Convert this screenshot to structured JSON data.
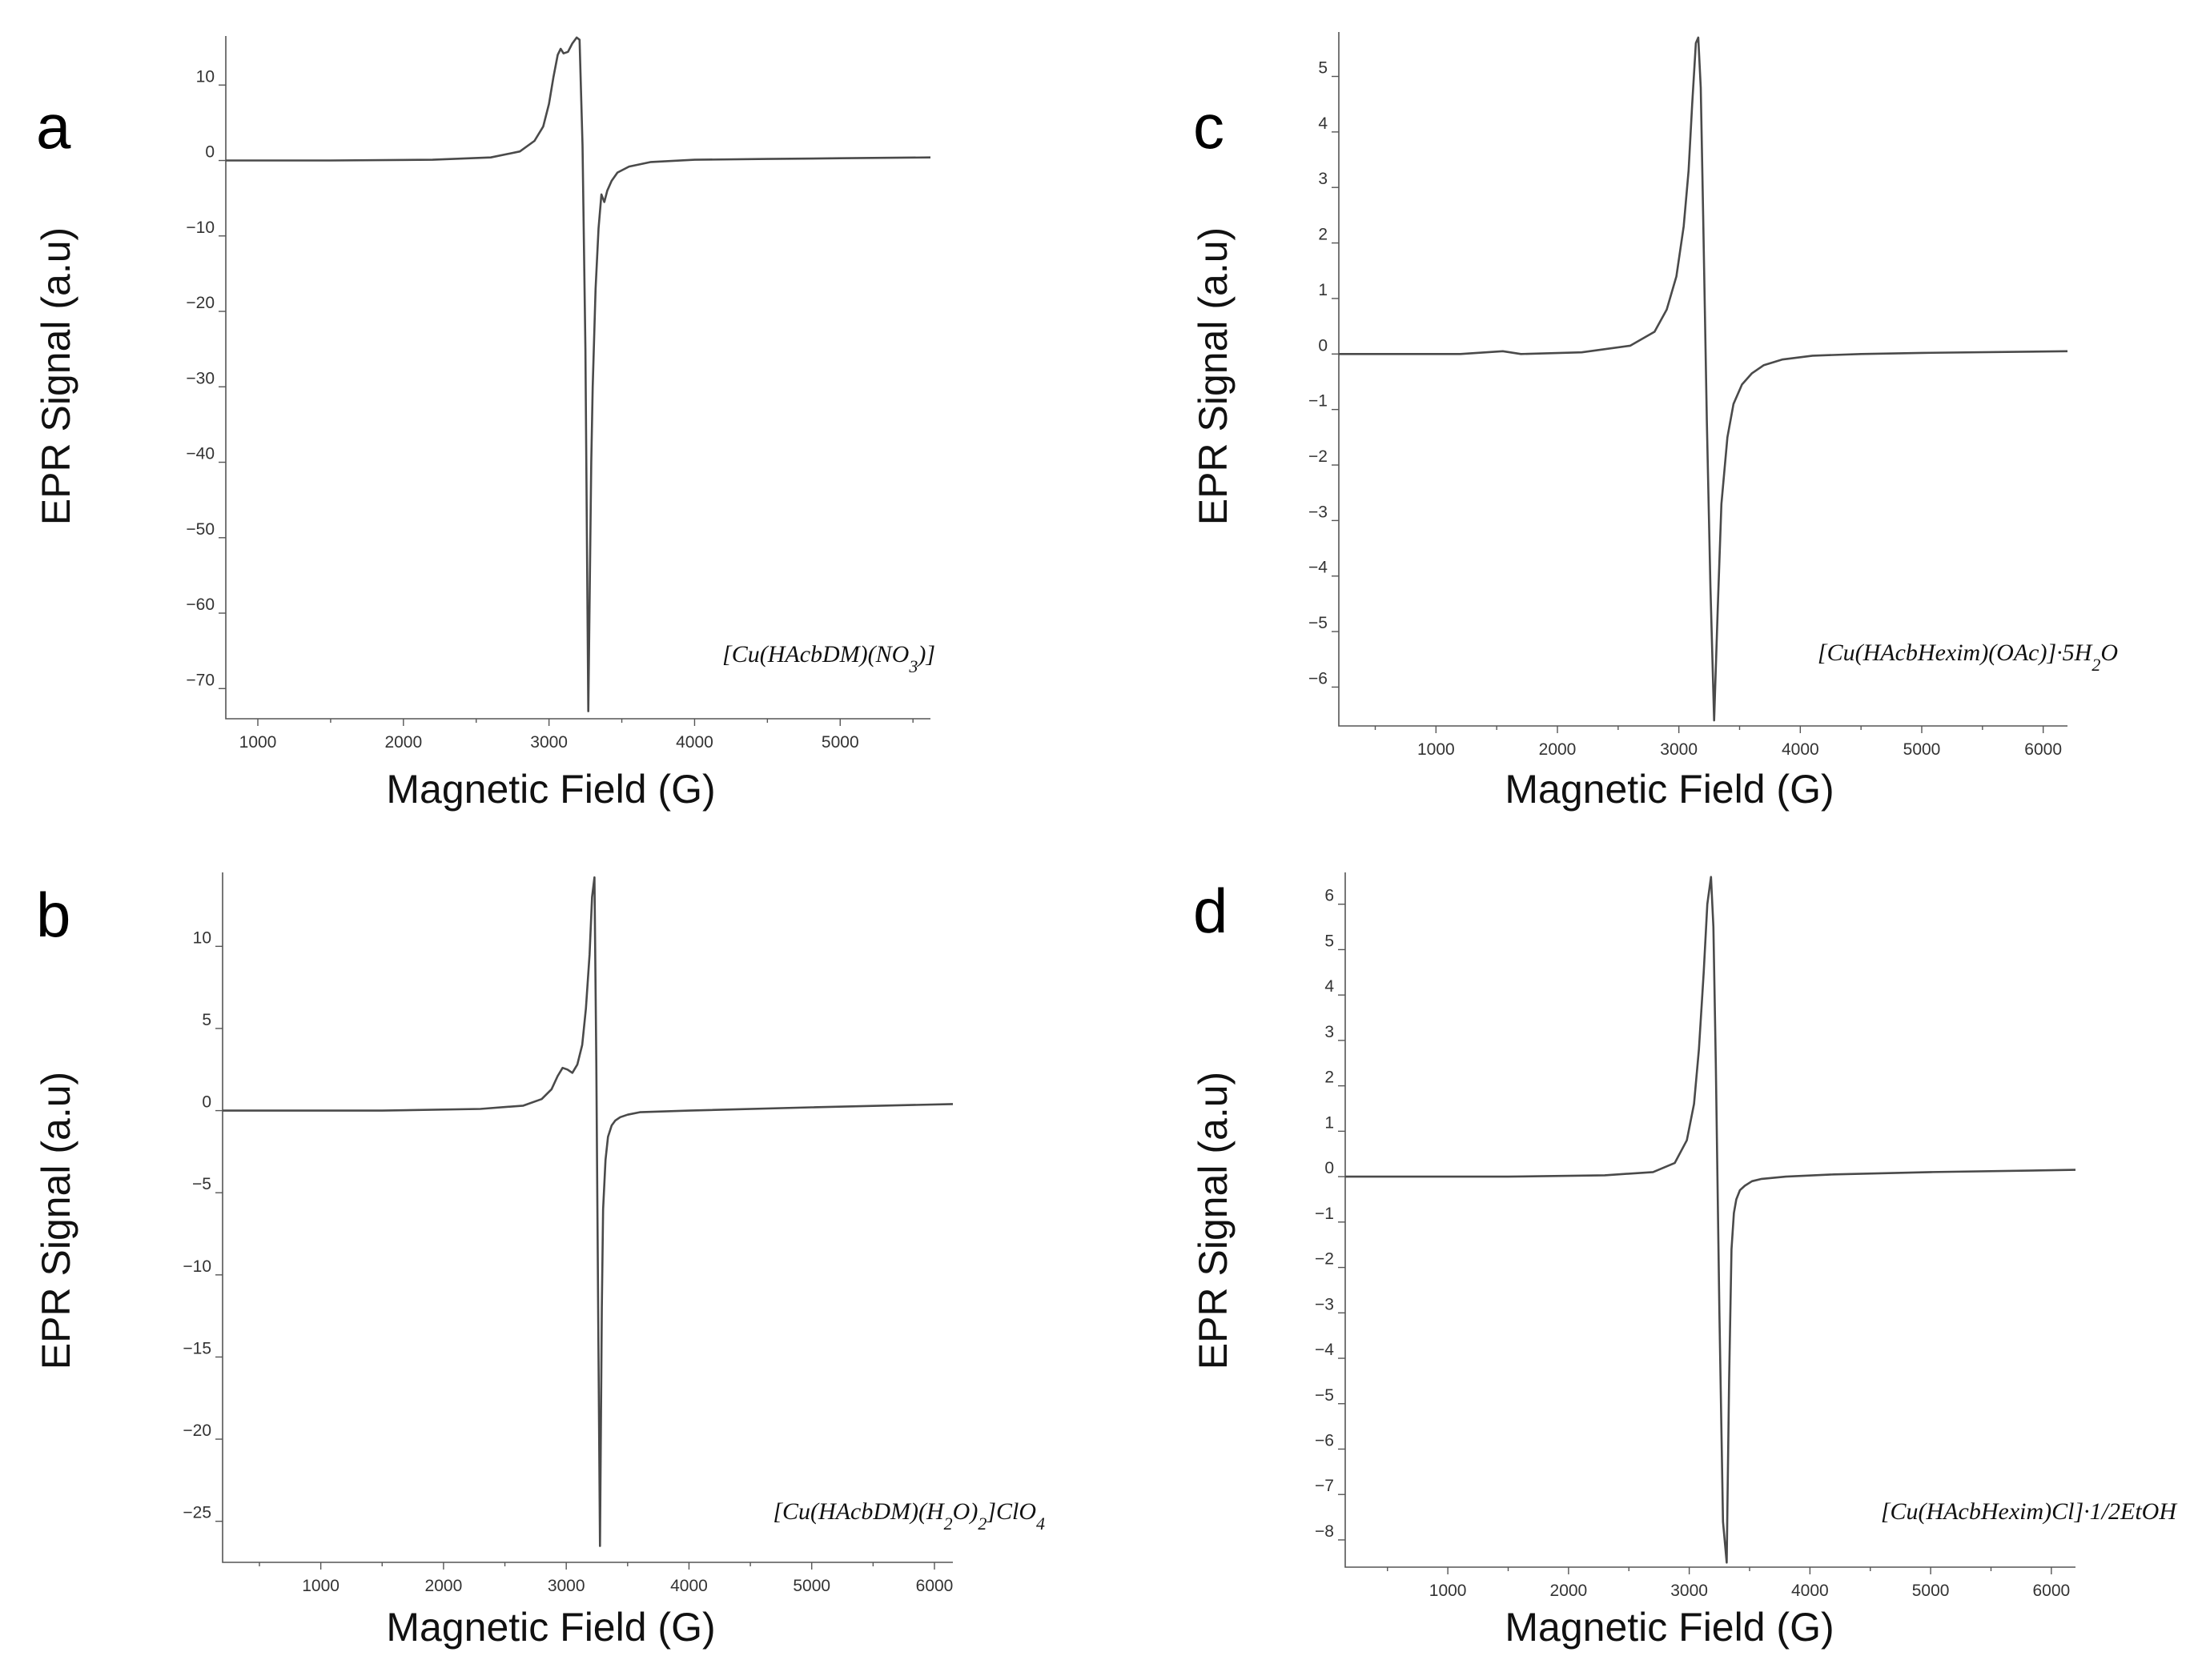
{
  "chart_data": [
    {
      "type": "line",
      "panel": "a",
      "compound": "[Cu(HAcbDM)(NO3)]",
      "xlabel": "Magnetic Field (G)",
      "ylabel": "EPR Signal (a.u)",
      "xlim": [
        780,
        5620
      ],
      "ylim": [
        -74,
        16.5
      ],
      "xticks": [
        1000,
        2000,
        3000,
        4000,
        5000
      ],
      "yticks": [
        10,
        0,
        -10,
        -20,
        -30,
        -40,
        -50,
        -60,
        -70
      ],
      "series": [
        {
          "x": [
            780,
            1500,
            2200,
            2600,
            2800,
            2900,
            2960,
            3000,
            3030,
            3060,
            3080,
            3100,
            3130,
            3160,
            3190,
            3210,
            3230,
            3250,
            3270,
            3290,
            3300,
            3320,
            3340,
            3360,
            3380,
            3400,
            3430,
            3470,
            3550,
            3700,
            4000,
            4500,
            5000,
            5620
          ],
          "y": [
            0,
            0,
            0.1,
            0.4,
            1.2,
            2.6,
            4.5,
            7.5,
            11,
            14,
            14.8,
            14.2,
            14.4,
            15.5,
            16.3,
            16,
            2,
            -25,
            -73,
            -40,
            -30,
            -17,
            -9,
            -4.5,
            -5.5,
            -4,
            -2.7,
            -1.6,
            -0.8,
            -0.2,
            0.1,
            0.2,
            0.3,
            0.4
          ]
        }
      ]
    },
    {
      "type": "line",
      "panel": "b",
      "compound": "[Cu(HAcbDM)(H2O)2]ClO4",
      "xlabel": "Magnetic Field (G)",
      "ylabel": "EPR Signal (a.u)",
      "xlim": [
        200,
        6150
      ],
      "ylim": [
        -27.5,
        14.5
      ],
      "xticks": [
        1000,
        2000,
        3000,
        4000,
        5000,
        6000
      ],
      "yticks": [
        10,
        5,
        0,
        -5,
        -10,
        -15,
        -20,
        -25
      ],
      "series": [
        {
          "x": [
            200,
            1500,
            2300,
            2650,
            2800,
            2880,
            2930,
            2970,
            3010,
            3050,
            3090,
            3130,
            3160,
            3190,
            3210,
            3230,
            3245,
            3260,
            3275,
            3290,
            3300,
            3320,
            3340,
            3370,
            3400,
            3440,
            3500,
            3600,
            4000,
            5000,
            6150
          ],
          "y": [
            0,
            0,
            0.1,
            0.3,
            0.7,
            1.3,
            2.1,
            2.6,
            2.5,
            2.3,
            2.8,
            4,
            6.2,
            9.5,
            13,
            14.2,
            3,
            -12,
            -26.5,
            -12,
            -6,
            -3,
            -1.6,
            -0.9,
            -0.6,
            -0.4,
            -0.25,
            -0.1,
            0,
            0.2,
            0.4
          ]
        }
      ]
    },
    {
      "type": "line",
      "panel": "c",
      "compound": "[Cu(HAcbHexim)(OAc)]·5H2O",
      "xlabel": "Magnetic Field (G)",
      "ylabel": "EPR Signal (a.u)",
      "xlim": [
        200,
        6200
      ],
      "ylim": [
        -6.7,
        5.8
      ],
      "xticks": [
        1000,
        2000,
        3000,
        4000,
        5000,
        6000
      ],
      "yticks": [
        5,
        4,
        3,
        2,
        1,
        0,
        -1,
        -2,
        -3,
        -4,
        -5,
        -6
      ],
      "series": [
        {
          "x": [
            200,
            1200,
            1550,
            1700,
            2200,
            2600,
            2800,
            2900,
            2980,
            3040,
            3080,
            3110,
            3140,
            3160,
            3180,
            3200,
            3230,
            3260,
            3290,
            3320,
            3350,
            3400,
            3450,
            3520,
            3600,
            3700,
            3850,
            4100,
            4500,
            5000,
            6200
          ],
          "y": [
            0,
            0,
            0.05,
            0,
            0.03,
            0.15,
            0.4,
            0.8,
            1.4,
            2.3,
            3.3,
            4.5,
            5.6,
            5.7,
            4.8,
            2.5,
            -1.2,
            -4.2,
            -6.6,
            -4.6,
            -2.7,
            -1.5,
            -0.9,
            -0.55,
            -0.35,
            -0.2,
            -0.1,
            -0.03,
            0,
            0.02,
            0.05
          ]
        }
      ]
    },
    {
      "type": "line",
      "panel": "d",
      "compound": "[Cu(HAcbHexim)Cl]·1/2EtOH",
      "xlabel": "Magnetic Field (G)",
      "ylabel": "EPR Signal (a.u)",
      "xlim": [
        150,
        6200
      ],
      "ylim": [
        -8.6,
        6.7
      ],
      "xticks": [
        1000,
        2000,
        3000,
        4000,
        5000,
        6000
      ],
      "yticks": [
        6,
        5,
        4,
        3,
        2,
        1,
        0,
        -1,
        -2,
        -3,
        -4,
        -5,
        -6,
        -7,
        -8
      ],
      "series": [
        {
          "x": [
            150,
            1500,
            2300,
            2700,
            2880,
            2980,
            3040,
            3080,
            3120,
            3150,
            3180,
            3200,
            3220,
            3250,
            3280,
            3310,
            3330,
            3350,
            3370,
            3390,
            3420,
            3460,
            3520,
            3600,
            3800,
            4200,
            5000,
            6200
          ],
          "y": [
            0,
            0,
            0.03,
            0.1,
            0.3,
            0.8,
            1.6,
            2.8,
            4.5,
            6,
            6.6,
            5.5,
            2.5,
            -3,
            -7.6,
            -8.5,
            -4.5,
            -1.6,
            -0.8,
            -0.5,
            -0.3,
            -0.2,
            -0.1,
            -0.05,
            0,
            0.05,
            0.1,
            0.15
          ]
        }
      ]
    }
  ]
}
